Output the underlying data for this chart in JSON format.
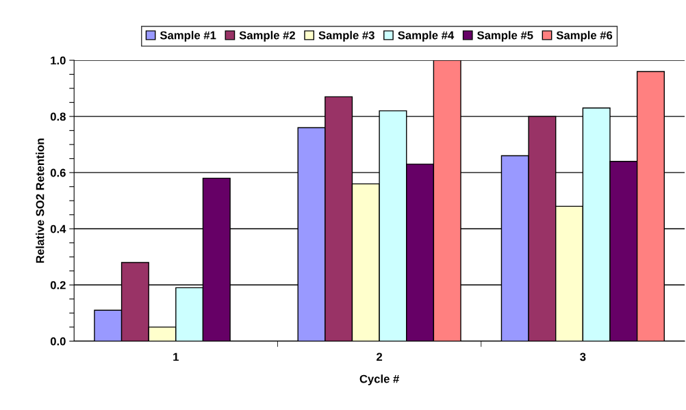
{
  "chart_data": {
    "type": "bar",
    "xlabel": "Cycle #",
    "ylabel": "Relative SO2 Retention",
    "categories": [
      "1",
      "2",
      "3"
    ],
    "series": [
      {
        "name": "Sample #1",
        "color": "#9999ff",
        "values": [
          0.11,
          0.76,
          0.66
        ]
      },
      {
        "name": "Sample #2",
        "color": "#993366",
        "values": [
          0.28,
          0.87,
          0.8
        ]
      },
      {
        "name": "Sample #3",
        "color": "#ffffcc",
        "values": [
          0.05,
          0.56,
          0.48
        ]
      },
      {
        "name": "Sample #4",
        "color": "#ccffff",
        "values": [
          0.19,
          0.82,
          0.83
        ]
      },
      {
        "name": "Sample #5",
        "color": "#660066",
        "values": [
          0.58,
          0.63,
          0.64
        ]
      },
      {
        "name": "Sample #6",
        "color": "#ff8080",
        "values": [
          null,
          1.0,
          0.96
        ]
      }
    ],
    "ylim": [
      0,
      1.0
    ],
    "yticks": [
      {
        "value": 0,
        "label": "0.0"
      },
      {
        "value": 0.05,
        "label": null
      },
      {
        "value": 0.1,
        "label": null
      },
      {
        "value": 0.15,
        "label": null
      },
      {
        "value": 0.2,
        "label": "0.2"
      },
      {
        "value": 0.25,
        "label": null
      },
      {
        "value": 0.3,
        "label": null
      },
      {
        "value": 0.35,
        "label": null
      },
      {
        "value": 0.4,
        "label": "0.4"
      },
      {
        "value": 0.45,
        "label": null
      },
      {
        "value": 0.5,
        "label": null
      },
      {
        "value": 0.55,
        "label": null
      },
      {
        "value": 0.6,
        "label": "0.6"
      },
      {
        "value": 0.65,
        "label": null
      },
      {
        "value": 0.7,
        "label": null
      },
      {
        "value": 0.75,
        "label": null
      },
      {
        "value": 0.8,
        "label": "0.8"
      },
      {
        "value": 0.85,
        "label": null
      },
      {
        "value": 0.9,
        "label": null
      },
      {
        "value": 0.95,
        "label": null
      },
      {
        "value": 1.0,
        "label": "1.0"
      }
    ],
    "grid": "y",
    "legend": "top"
  }
}
